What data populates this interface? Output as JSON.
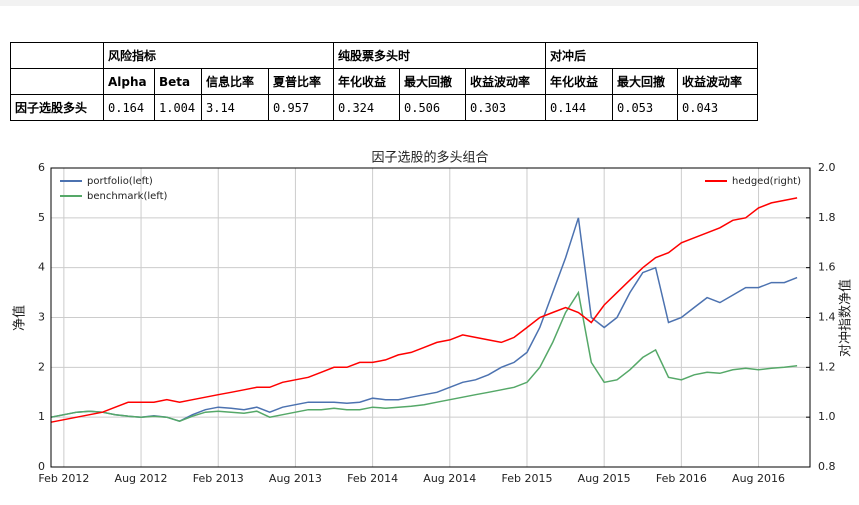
{
  "table": {
    "groups": [
      "风险指标",
      "纯股票多头时",
      "对冲后"
    ],
    "columns": [
      "Alpha",
      "Beta",
      "信息比率",
      "夏普比率",
      "年化收益",
      "最大回撤",
      "收益波动率",
      "年化收益",
      "最大回撤",
      "收益波动率"
    ],
    "rows": [
      [
        "因子选股多头",
        "0.164",
        "1.004",
        "3.14",
        "0.957",
        "0.324",
        "0.506",
        "0.303",
        "0.144",
        "0.053",
        "0.043"
      ]
    ]
  },
  "chart_data": {
    "type": "line",
    "title": "因子选股的多头组合",
    "ylabel": "净值",
    "y2label": "对冲指数净值",
    "x": [
      "2012-01",
      "2012-02",
      "2012-03",
      "2012-04",
      "2012-05",
      "2012-06",
      "2012-07",
      "2012-08",
      "2012-09",
      "2012-10",
      "2012-11",
      "2012-12",
      "2013-01",
      "2013-02",
      "2013-03",
      "2013-04",
      "2013-05",
      "2013-06",
      "2013-07",
      "2013-08",
      "2013-09",
      "2013-10",
      "2013-11",
      "2013-12",
      "2014-01",
      "2014-02",
      "2014-03",
      "2014-04",
      "2014-05",
      "2014-06",
      "2014-07",
      "2014-08",
      "2014-09",
      "2014-10",
      "2014-11",
      "2014-12",
      "2015-01",
      "2015-02",
      "2015-03",
      "2015-04",
      "2015-05",
      "2015-06",
      "2015-07",
      "2015-08",
      "2015-09",
      "2015-10",
      "2015-11",
      "2015-12",
      "2016-01",
      "2016-02",
      "2016-03",
      "2016-04",
      "2016-05",
      "2016-06",
      "2016-07",
      "2016-08",
      "2016-09",
      "2016-10",
      "2016-11"
    ],
    "series": [
      {
        "name": "portfolio(left)",
        "color": "#4c72b0",
        "axis": "y",
        "values": [
          1.0,
          1.05,
          1.1,
          1.12,
          1.1,
          1.05,
          1.02,
          1.0,
          1.03,
          1.0,
          0.92,
          1.05,
          1.15,
          1.2,
          1.18,
          1.15,
          1.2,
          1.1,
          1.2,
          1.25,
          1.3,
          1.3,
          1.3,
          1.28,
          1.3,
          1.38,
          1.35,
          1.35,
          1.4,
          1.45,
          1.5,
          1.6,
          1.7,
          1.75,
          1.85,
          2.0,
          2.1,
          2.3,
          2.8,
          3.5,
          4.2,
          5.0,
          3.0,
          2.8,
          3.0,
          3.5,
          3.9,
          4.0,
          2.9,
          3.0,
          3.2,
          3.4,
          3.3,
          3.45,
          3.6,
          3.6,
          3.7,
          3.7,
          3.8
        ]
      },
      {
        "name": "benchmark(left)",
        "color": "#55a868",
        "axis": "y",
        "values": [
          1.0,
          1.05,
          1.1,
          1.12,
          1.1,
          1.05,
          1.02,
          1.0,
          1.02,
          1.0,
          0.92,
          1.02,
          1.1,
          1.12,
          1.1,
          1.08,
          1.12,
          1.0,
          1.05,
          1.1,
          1.15,
          1.15,
          1.18,
          1.15,
          1.15,
          1.2,
          1.18,
          1.2,
          1.22,
          1.25,
          1.3,
          1.35,
          1.4,
          1.45,
          1.5,
          1.55,
          1.6,
          1.7,
          2.0,
          2.5,
          3.1,
          3.5,
          2.1,
          1.7,
          1.75,
          1.95,
          2.2,
          2.35,
          1.8,
          1.75,
          1.85,
          1.9,
          1.88,
          1.95,
          1.98,
          1.95,
          1.98,
          2.0,
          2.03
        ]
      },
      {
        "name": "hedged(right)",
        "color": "#ff0000",
        "axis": "y2",
        "values": [
          0.98,
          0.99,
          1.0,
          1.01,
          1.02,
          1.04,
          1.06,
          1.06,
          1.06,
          1.07,
          1.06,
          1.07,
          1.08,
          1.09,
          1.1,
          1.11,
          1.12,
          1.12,
          1.14,
          1.15,
          1.16,
          1.18,
          1.2,
          1.2,
          1.22,
          1.22,
          1.23,
          1.25,
          1.26,
          1.28,
          1.3,
          1.31,
          1.33,
          1.32,
          1.31,
          1.3,
          1.32,
          1.36,
          1.4,
          1.42,
          1.44,
          1.42,
          1.38,
          1.45,
          1.5,
          1.55,
          1.6,
          1.64,
          1.66,
          1.7,
          1.72,
          1.74,
          1.76,
          1.79,
          1.8,
          1.84,
          1.86,
          1.87,
          1.88
        ]
      }
    ],
    "xlim": [
      "2012-01",
      "2016-12"
    ],
    "xticks": [
      {
        "value": "2012-02",
        "label": "Feb 2012"
      },
      {
        "value": "2012-08",
        "label": "Aug 2012"
      },
      {
        "value": "2013-02",
        "label": "Feb 2013"
      },
      {
        "value": "2013-08",
        "label": "Aug 2013"
      },
      {
        "value": "2014-02",
        "label": "Feb 2014"
      },
      {
        "value": "2014-08",
        "label": "Aug 2014"
      },
      {
        "value": "2015-02",
        "label": "Feb 2015"
      },
      {
        "value": "2015-08",
        "label": "Aug 2015"
      },
      {
        "value": "2016-02",
        "label": "Feb 2016"
      },
      {
        "value": "2016-08",
        "label": "Aug 2016"
      }
    ],
    "ylim": [
      0,
      6
    ],
    "yticks": [
      0,
      1,
      2,
      3,
      4,
      5,
      6
    ],
    "y2lim": [
      0.8,
      2.0
    ],
    "y2ticks": [
      0.8,
      1.0,
      1.2,
      1.4,
      1.6,
      1.8,
      2.0
    ],
    "y2tick_labels": [
      "0.8",
      "1.0",
      "1.2",
      "1.4",
      "1.6",
      "1.8",
      "2.0"
    ],
    "grid": true
  }
}
